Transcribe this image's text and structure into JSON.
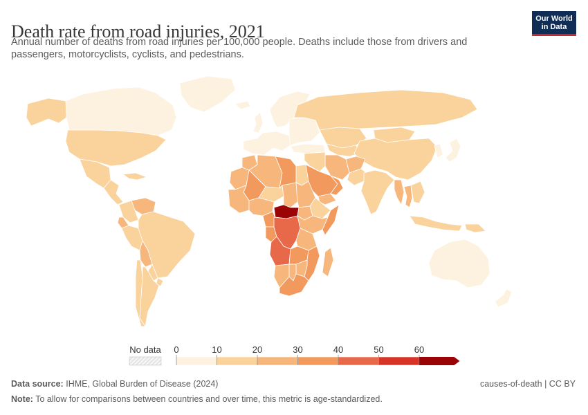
{
  "header": {
    "title": "Death rate from road injuries, 2021",
    "subtitle": "Annual number of deaths from road injuries per 100,000 people. Deaths include those from drivers and passengers, motorcyclists, cyclists, and pedestrians.",
    "logo_line1": "Our World",
    "logo_line2": "in Data"
  },
  "colors": {
    "bins": [
      "#fdf1e0",
      "#f9d29c",
      "#f7b77c",
      "#f29a5e",
      "#e8694a",
      "#d83327",
      "#9b0407"
    ],
    "nodata": "#e8e8e8",
    "map_stroke": "#ffffff",
    "accent_navy": "#0f2d55",
    "accent_red": "#c9272e"
  },
  "chart_data": {
    "type": "choropleth",
    "title": "Death rate from road injuries, 2021",
    "unit": "deaths per 100,000 people",
    "year": 2021,
    "legend": {
      "nodata_label": "No data",
      "ticks": [
        0,
        10,
        20,
        30,
        40,
        50,
        60
      ],
      "bins": [
        [
          0,
          10
        ],
        [
          10,
          20
        ],
        [
          20,
          30
        ],
        [
          30,
          40
        ],
        [
          40,
          50
        ],
        [
          50,
          60
        ],
        [
          60,
          70
        ]
      ]
    },
    "regions": [
      {
        "name": "Canada",
        "value": 5
      },
      {
        "name": "Alaska",
        "value": 12
      },
      {
        "name": "United States",
        "value": 14
      },
      {
        "name": "Mexico",
        "value": 13
      },
      {
        "name": "Central America",
        "value": 17
      },
      {
        "name": "Caribbean",
        "value": 12
      },
      {
        "name": "Greenland",
        "value": 0
      },
      {
        "name": "Venezuela",
        "value": 25
      },
      {
        "name": "Colombia",
        "value": 16
      },
      {
        "name": "Ecuador",
        "value": 28
      },
      {
        "name": "Peru",
        "value": 17
      },
      {
        "name": "Brazil",
        "value": 17
      },
      {
        "name": "Bolivia",
        "value": 21
      },
      {
        "name": "Paraguay",
        "value": 18
      },
      {
        "name": "Chile",
        "value": 10
      },
      {
        "name": "Argentina",
        "value": 13
      },
      {
        "name": "Uruguay",
        "value": 13
      },
      {
        "name": "Iceland",
        "value": 3
      },
      {
        "name": "United Kingdom",
        "value": 3
      },
      {
        "name": "Western Europe",
        "value": 5
      },
      {
        "name": "Scandinavia",
        "value": 4
      },
      {
        "name": "Eastern Europe",
        "value": 8
      },
      {
        "name": "Russia",
        "value": 14
      },
      {
        "name": "Turkey",
        "value": 8
      },
      {
        "name": "Kazakhstan",
        "value": 13
      },
      {
        "name": "Central Asia",
        "value": 15
      },
      {
        "name": "Mongolia",
        "value": 18
      },
      {
        "name": "China",
        "value": 16
      },
      {
        "name": "Korea",
        "value": 8
      },
      {
        "name": "Japan",
        "value": 4
      },
      {
        "name": "Iran",
        "value": 22
      },
      {
        "name": "Afghanistan",
        "value": 28
      },
      {
        "name": "Pakistan",
        "value": 16
      },
      {
        "name": "India",
        "value": 17
      },
      {
        "name": "Myanmar",
        "value": 20
      },
      {
        "name": "Thailand",
        "value": 28
      },
      {
        "name": "Southeast Asia",
        "value": 18
      },
      {
        "name": "Indonesia",
        "value": 13
      },
      {
        "name": "Papua New Guinea",
        "value": 18
      },
      {
        "name": "Australia",
        "value": 5
      },
      {
        "name": "New Zealand",
        "value": 7
      },
      {
        "name": "Middle East",
        "value": 15
      },
      {
        "name": "Saudi Arabia",
        "value": 38
      },
      {
        "name": "Yemen",
        "value": 28
      },
      {
        "name": "Oman",
        "value": 32
      },
      {
        "name": "Morocco",
        "value": 22
      },
      {
        "name": "Algeria",
        "value": 22
      },
      {
        "name": "Libya",
        "value": 36
      },
      {
        "name": "Egypt",
        "value": 13
      },
      {
        "name": "Mauritania",
        "value": 27
      },
      {
        "name": "Mali",
        "value": 32
      },
      {
        "name": "Niger",
        "value": 18
      },
      {
        "name": "Chad",
        "value": 20
      },
      {
        "name": "Sudan",
        "value": 25
      },
      {
        "name": "West Africa",
        "value": 27
      },
      {
        "name": "Nigeria",
        "value": 25
      },
      {
        "name": "Central African Republic",
        "value": 68
      },
      {
        "name": "South Sudan",
        "value": 28
      },
      {
        "name": "Ethiopia",
        "value": 18
      },
      {
        "name": "Somalia",
        "value": 38
      },
      {
        "name": "Cameroon",
        "value": 30
      },
      {
        "name": "Gabon & Congo",
        "value": 30
      },
      {
        "name": "DR Congo",
        "value": 40
      },
      {
        "name": "Uganda & Kenya",
        "value": 28
      },
      {
        "name": "Tanzania",
        "value": 25
      },
      {
        "name": "Angola",
        "value": 41
      },
      {
        "name": "Zambia",
        "value": 36
      },
      {
        "name": "Mozambique",
        "value": 38
      },
      {
        "name": "Zimbabwe",
        "value": 28
      },
      {
        "name": "Namibia",
        "value": 28
      },
      {
        "name": "Botswana",
        "value": 27
      },
      {
        "name": "South Africa",
        "value": 36
      },
      {
        "name": "Madagascar",
        "value": 25
      }
    ]
  },
  "footer": {
    "source_label": "Data source:",
    "source_text": "IHME, Global Burden of Disease (2024)",
    "note_label": "Note:",
    "note_text": "To allow for comparisons between countries and over time, this metric is age-standardized.",
    "right_text": "causes-of-death | CC BY"
  }
}
